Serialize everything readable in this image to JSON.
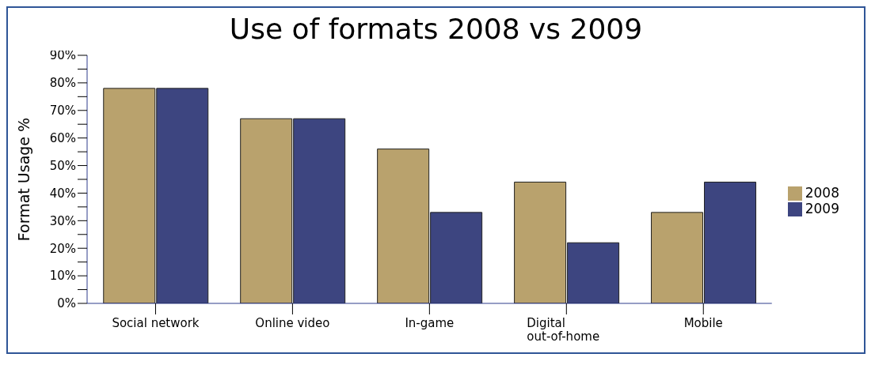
{
  "chart_data": {
    "type": "bar",
    "title": "Use of formats 2008 vs 2009",
    "ylabel": "Format Usage %",
    "categories": [
      "Social network",
      "Online video",
      "In-game",
      "Digital out-of-home",
      "Mobile"
    ],
    "series": [
      {
        "name": "2008",
        "color": "#b9a26d",
        "values": [
          78,
          67,
          56,
          44,
          33
        ]
      },
      {
        "name": "2009",
        "color": "#3d4580",
        "values": [
          78,
          67,
          33,
          22,
          44
        ]
      }
    ],
    "ylim": [
      0,
      90
    ],
    "yticks": [
      {
        "value": 0,
        "label": "0%"
      },
      {
        "value": 5,
        "label": null
      },
      {
        "value": 10,
        "label": "10%"
      },
      {
        "value": 15,
        "label": null
      },
      {
        "value": 20,
        "label": "20%"
      },
      {
        "value": 25,
        "label": null
      },
      {
        "value": 30,
        "label": "30%"
      },
      {
        "value": 35,
        "label": null
      },
      {
        "value": 40,
        "label": "40%"
      },
      {
        "value": 45,
        "label": null
      },
      {
        "value": 50,
        "label": "50%"
      },
      {
        "value": 55,
        "label": null
      },
      {
        "value": 60,
        "label": "60%"
      },
      {
        "value": 65,
        "label": null
      },
      {
        "value": 70,
        "label": "70%"
      },
      {
        "value": 75,
        "label": null
      },
      {
        "value": 80,
        "label": "80%"
      },
      {
        "value": 85,
        "label": null
      },
      {
        "value": 90,
        "label": "90%"
      }
    ],
    "grid": false,
    "legend": "right"
  }
}
